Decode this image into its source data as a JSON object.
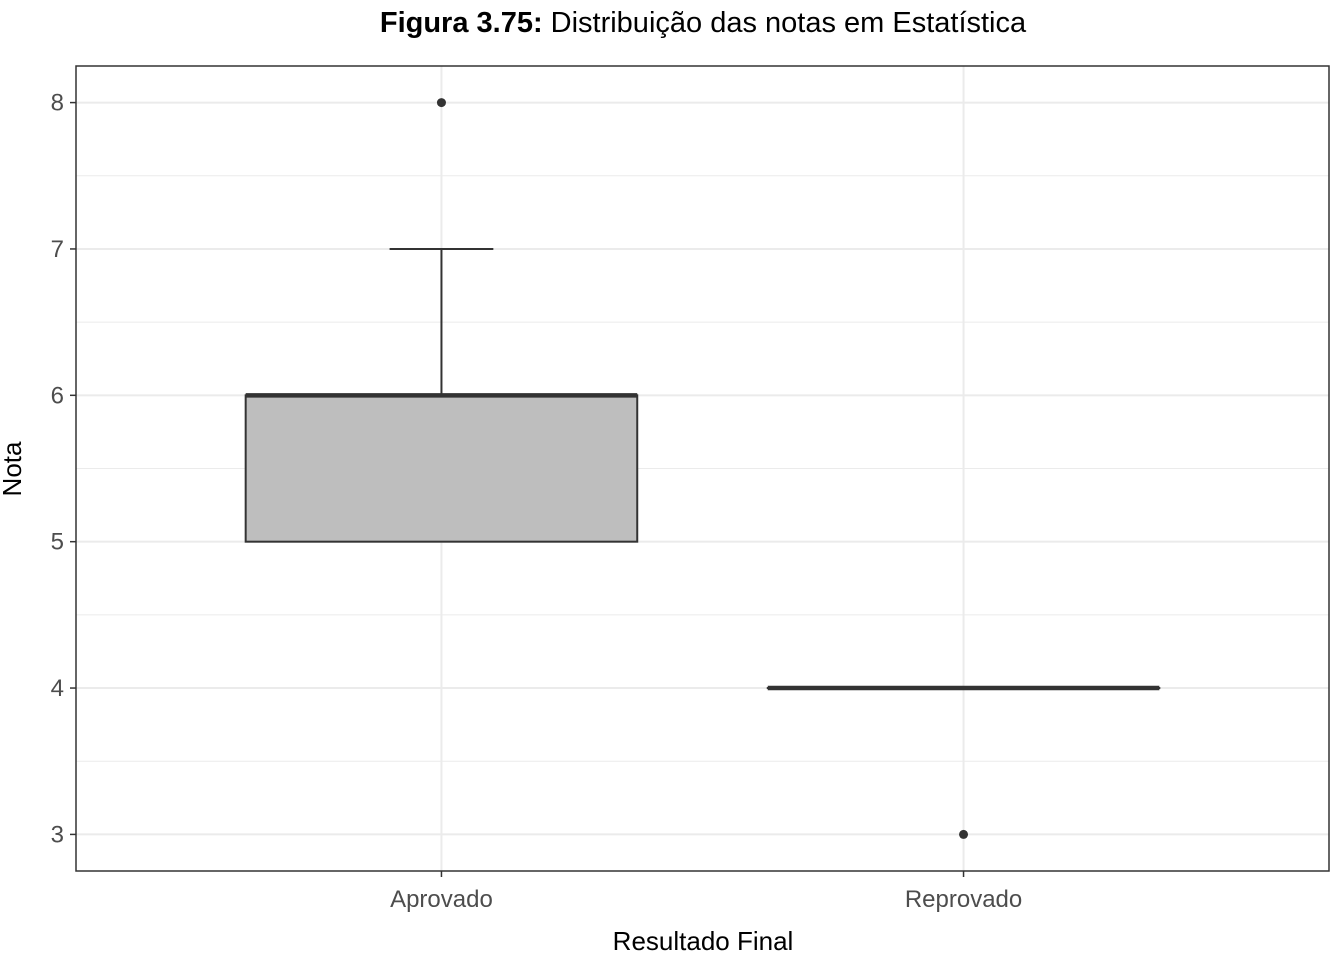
{
  "chart_data": {
    "type": "boxplot",
    "title_prefix": "Figura 3.75:",
    "title": "Distribuição das notas em Estatística",
    "xlabel": "Resultado Final",
    "ylabel": "Nota",
    "ylim": [
      2.75,
      8.25
    ],
    "y_ticks": [
      3,
      4,
      5,
      6,
      7,
      8
    ],
    "y_tick_labels": [
      "3",
      "4",
      "5",
      "6",
      "7",
      "8"
    ],
    "grid": true,
    "categories": [
      "Aprovado",
      "Reprovado"
    ],
    "boxes": [
      {
        "category": "Aprovado",
        "whisker_low": 5,
        "q1": 5,
        "median": 6,
        "q3": 6,
        "whisker_high": 7,
        "outliers": [
          8
        ]
      },
      {
        "category": "Reprovado",
        "whisker_low": 4,
        "q1": 4,
        "median": 4,
        "q3": 4,
        "whisker_high": 4,
        "outliers": [
          3
        ]
      }
    ],
    "box_fill": "#bebebe",
    "line_color": "#333333",
    "grid_color": "#ebebeb"
  }
}
